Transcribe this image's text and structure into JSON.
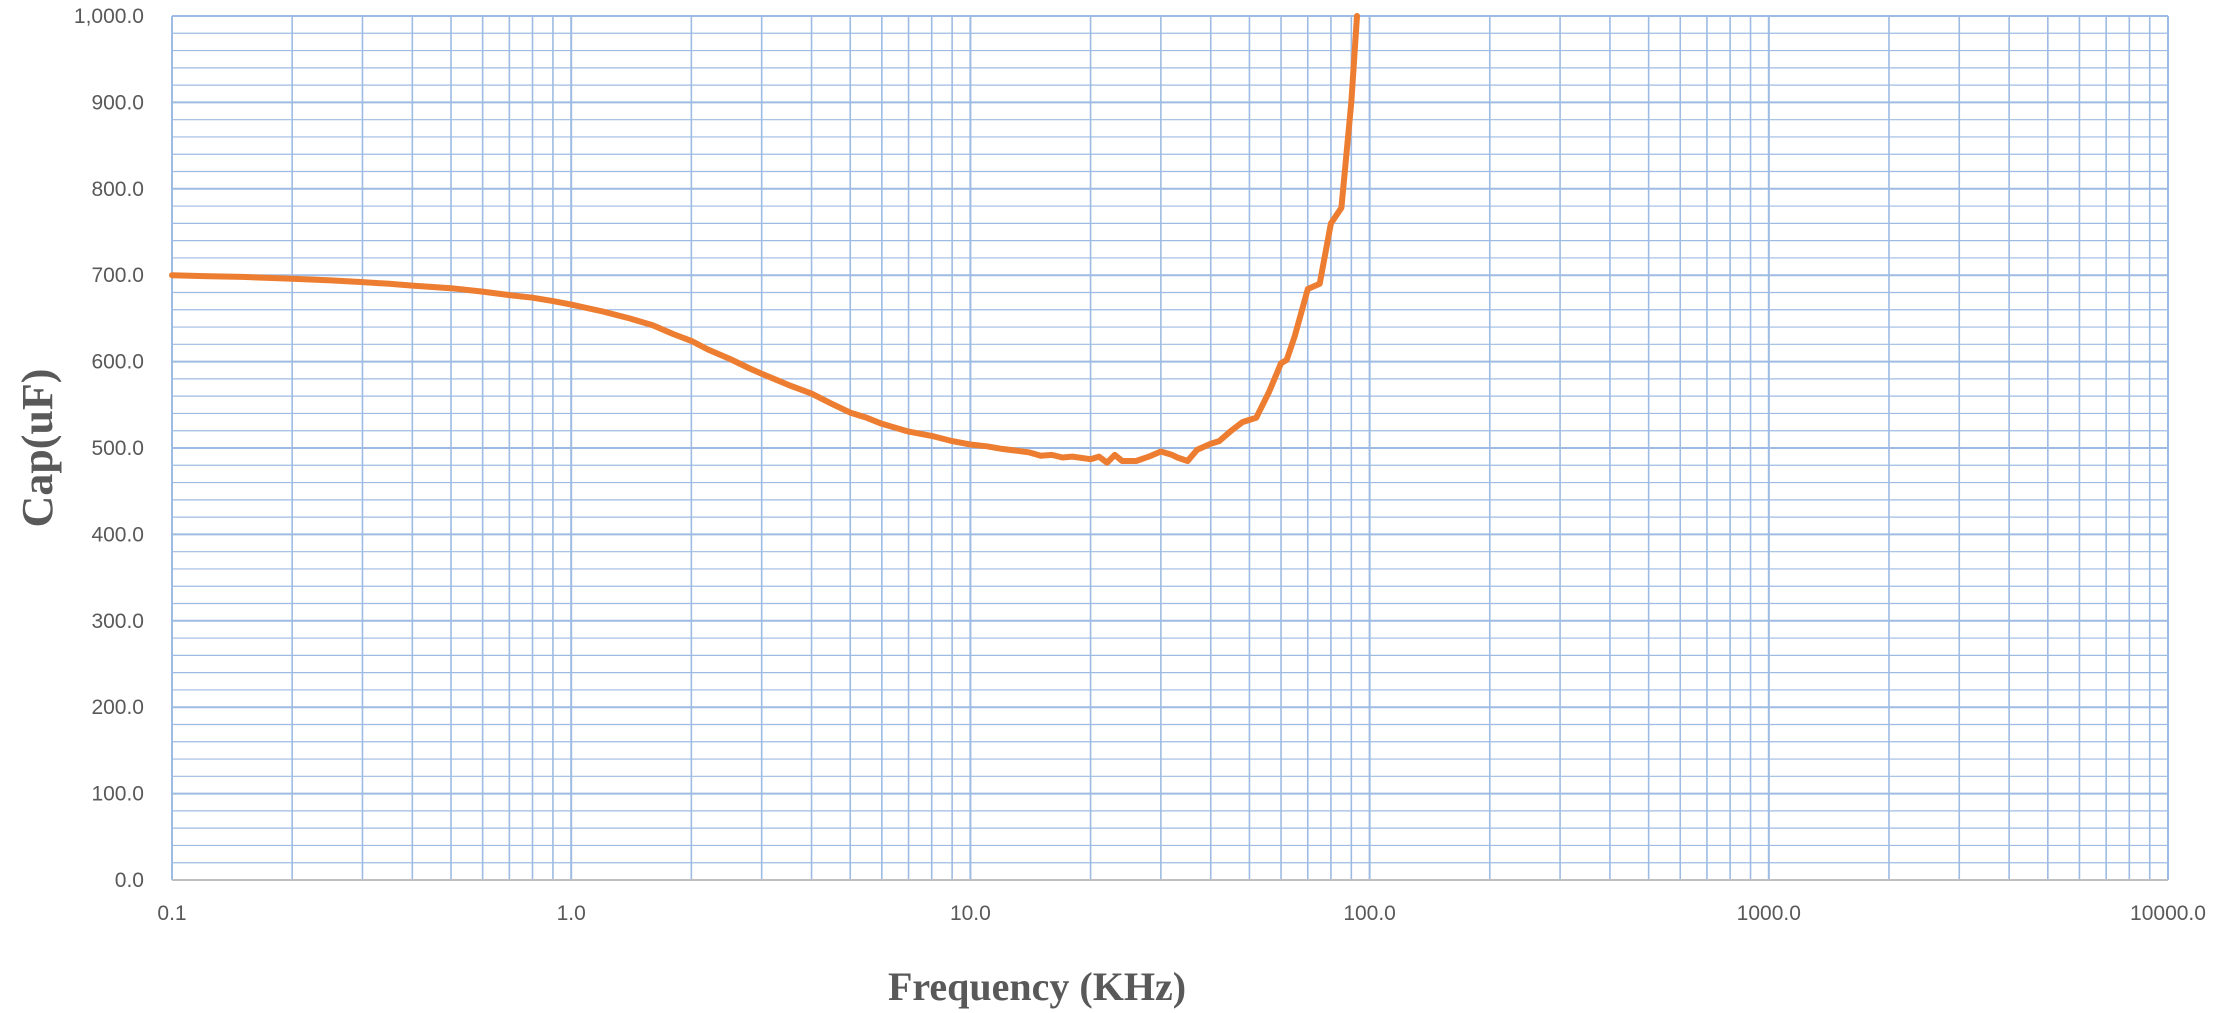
{
  "chart_data": {
    "type": "line",
    "title": "",
    "xlabel": "Frequency (KHz)",
    "ylabel": "Cap(uF)",
    "x_scale": "log",
    "xlim": [
      0.1,
      10000
    ],
    "ylim": [
      0,
      1000
    ],
    "x_ticks": [
      0.1,
      1,
      10,
      100,
      1000,
      10000
    ],
    "x_tick_labels": [
      "0.1",
      "1.0",
      "10.0",
      "100.0",
      "1000.0",
      "10000.0"
    ],
    "y_ticks": [
      0,
      100,
      200,
      300,
      400,
      500,
      600,
      700,
      800,
      900,
      1000
    ],
    "y_tick_labels": [
      "0.0",
      "100.0",
      "200.0",
      "300.0",
      "400.0",
      "500.0",
      "600.0",
      "700.0",
      "800.0",
      "900.0",
      "1,000.0"
    ],
    "grid": true,
    "grid_color": "#9dbbe3",
    "axis_color": "#bfbfbf",
    "text_color": "#595959",
    "series": [
      {
        "color": "#ed7d31",
        "x": [
          0.1,
          0.12,
          0.15,
          0.2,
          0.25,
          0.3,
          0.35,
          0.4,
          0.5,
          0.6,
          0.7,
          0.8,
          0.9,
          1.0,
          1.2,
          1.4,
          1.6,
          1.8,
          2.0,
          2.2,
          2.5,
          2.8,
          3.0,
          3.5,
          4.0,
          4.5,
          5.0,
          5.5,
          6.0,
          7.0,
          8.0,
          9.0,
          10.0,
          11.0,
          12.0,
          13.0,
          14.0,
          15.0,
          16.0,
          17.0,
          18.0,
          20.0,
          21.0,
          22.0,
          23.0,
          24.0,
          26.0,
          28.0,
          30.0,
          32.0,
          33.0,
          35.0,
          37.0,
          40.0,
          42.0,
          45.0,
          48.0,
          52.0,
          56.0,
          60.0,
          62.0,
          65.0,
          70.0,
          75.0,
          80.0,
          85.0,
          90.0,
          93.0
        ],
        "y": [
          700,
          699,
          698,
          696,
          694,
          692,
          690,
          688,
          685,
          681,
          677,
          674,
          670,
          666,
          658,
          650,
          642,
          632,
          624,
          614,
          603,
          592,
          586,
          573,
          563,
          551,
          541,
          535,
          528,
          519,
          514,
          508,
          504,
          502,
          499,
          497,
          495,
          491,
          492,
          489,
          490,
          487,
          490,
          483,
          492,
          485,
          485,
          490,
          496,
          492,
          489,
          485,
          498,
          505,
          508,
          520,
          530,
          535,
          565,
          598,
          602,
          630,
          684,
          690,
          760,
          778,
          900,
          1000
        ]
      }
    ]
  }
}
